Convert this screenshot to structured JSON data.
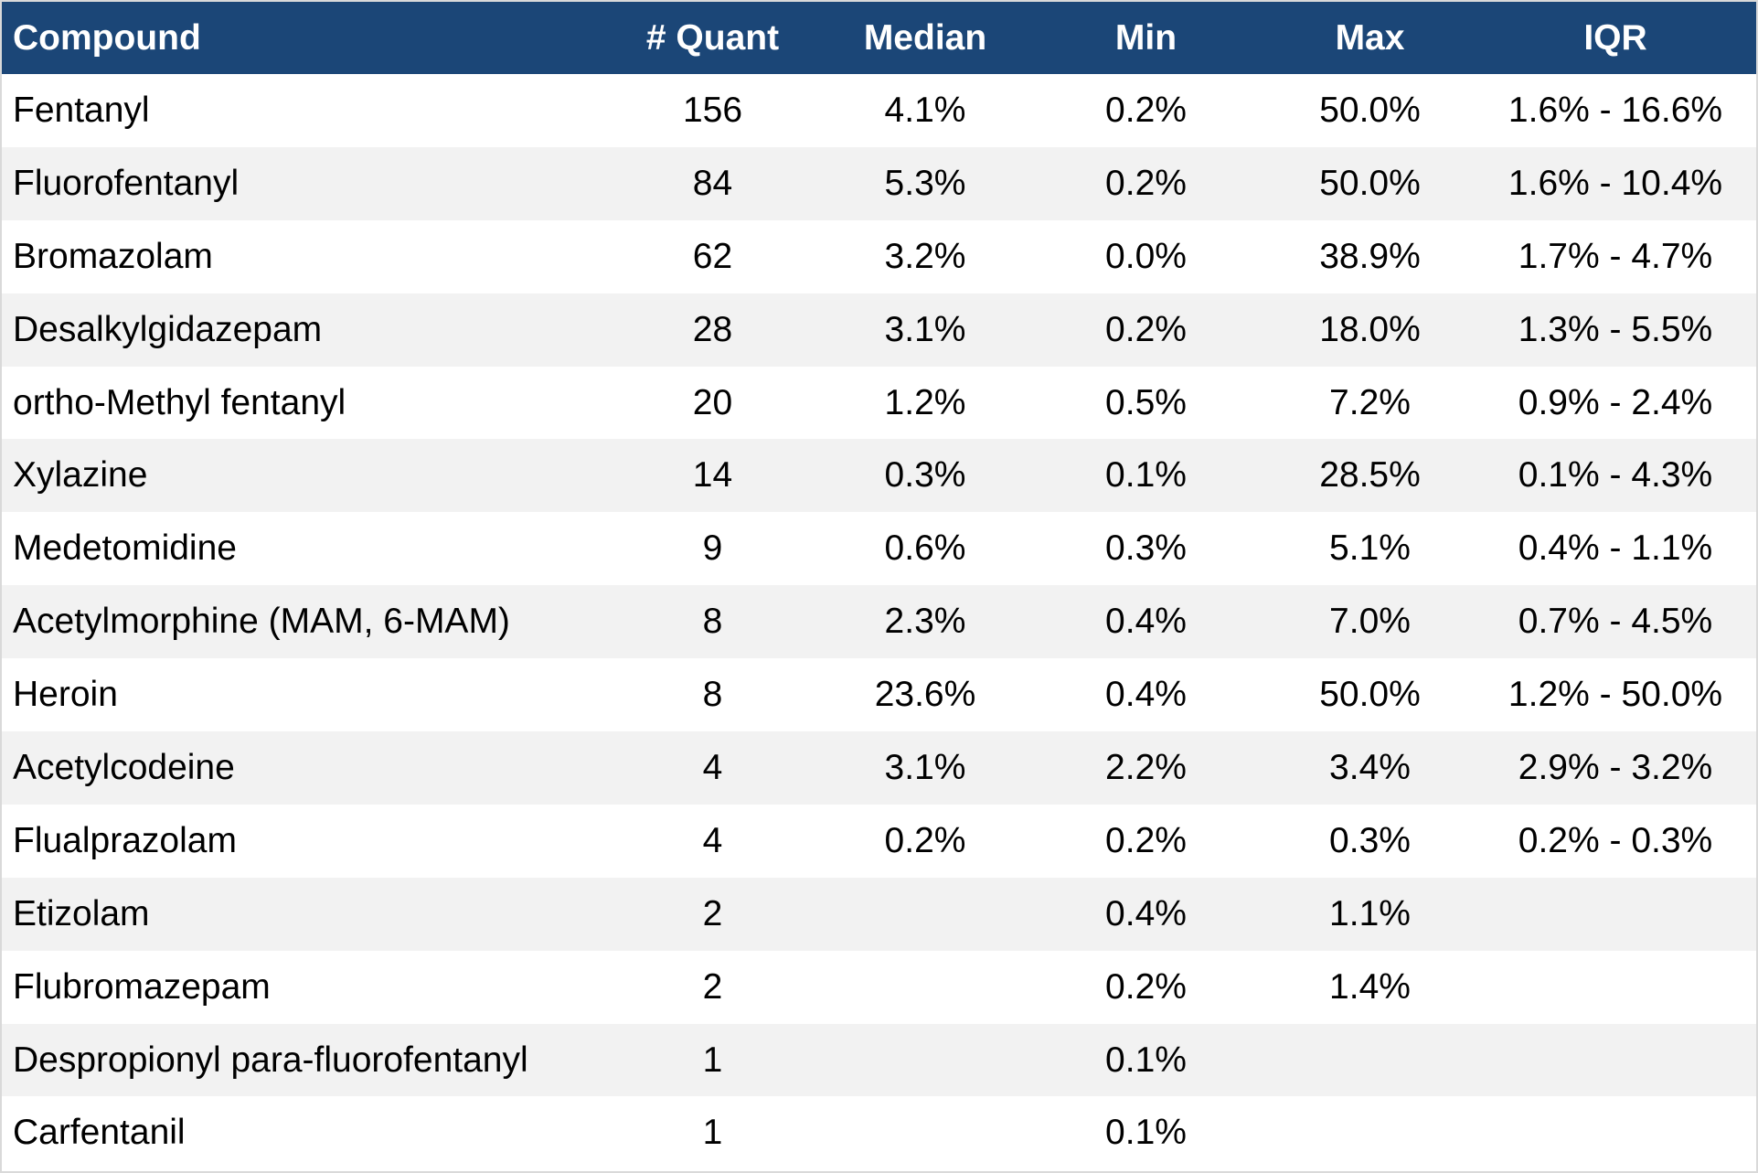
{
  "table": {
    "headers": [
      "Compound",
      "# Quant",
      "Median",
      "Min",
      "Max",
      "IQR"
    ],
    "rows": [
      [
        "Fentanyl",
        "156",
        "4.1%",
        "0.2%",
        "50.0%",
        "1.6% - 16.6%"
      ],
      [
        "Fluorofentanyl",
        "84",
        "5.3%",
        "0.2%",
        "50.0%",
        "1.6% - 10.4%"
      ],
      [
        "Bromazolam",
        "62",
        "3.2%",
        "0.0%",
        "38.9%",
        "1.7% - 4.7%"
      ],
      [
        "Desalkylgidazepam",
        "28",
        "3.1%",
        "0.2%",
        "18.0%",
        "1.3% - 5.5%"
      ],
      [
        "ortho-Methyl fentanyl",
        "20",
        "1.2%",
        "0.5%",
        "7.2%",
        "0.9% - 2.4%"
      ],
      [
        "Xylazine",
        "14",
        "0.3%",
        "0.1%",
        "28.5%",
        "0.1% - 4.3%"
      ],
      [
        "Medetomidine",
        "9",
        "0.6%",
        "0.3%",
        "5.1%",
        "0.4% - 1.1%"
      ],
      [
        "Acetylmorphine (MAM, 6-MAM)",
        "8",
        "2.3%",
        "0.4%",
        "7.0%",
        "0.7% - 4.5%"
      ],
      [
        "Heroin",
        "8",
        "23.6%",
        "0.4%",
        "50.0%",
        "1.2% - 50.0%"
      ],
      [
        "Acetylcodeine",
        "4",
        "3.1%",
        "2.2%",
        "3.4%",
        "2.9% - 3.2%"
      ],
      [
        "Flualprazolam",
        "4",
        "0.2%",
        "0.2%",
        "0.3%",
        "0.2% - 0.3%"
      ],
      [
        "Etizolam",
        "2",
        "",
        "0.4%",
        "1.1%",
        ""
      ],
      [
        "Flubromazepam",
        "2",
        "",
        "0.2%",
        "1.4%",
        ""
      ],
      [
        "Despropionyl para-fluorofentanyl",
        "1",
        "",
        "0.1%",
        "",
        ""
      ],
      [
        "Carfentanil",
        "1",
        "",
        "0.1%",
        "",
        ""
      ]
    ]
  },
  "colors": {
    "header_background": "#1b4677",
    "header_text": "#ffffff",
    "stripe": "#f2f2f2"
  }
}
